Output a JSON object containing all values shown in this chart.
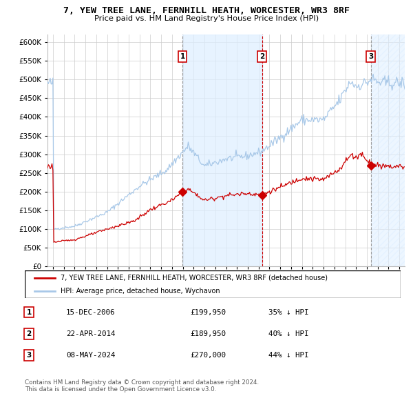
{
  "title": "7, YEW TREE LANE, FERNHILL HEATH, WORCESTER, WR3 8RF",
  "subtitle": "Price paid vs. HM Land Registry's House Price Index (HPI)",
  "hpi_color": "#a8c8e8",
  "price_color": "#cc0000",
  "background_color": "#ffffff",
  "plot_bg_color": "#ffffff",
  "grid_color": "#cccccc",
  "ylim": [
    0,
    620000
  ],
  "yticks": [
    0,
    50000,
    100000,
    150000,
    200000,
    250000,
    300000,
    350000,
    400000,
    450000,
    500000,
    550000,
    600000
  ],
  "xlim_start": 1994.5,
  "xlim_end": 2027.5,
  "transactions": [
    {
      "label": "1",
      "date": 2006.96,
      "price": 199950
    },
    {
      "label": "2",
      "date": 2014.31,
      "price": 189950
    },
    {
      "label": "3",
      "date": 2024.36,
      "price": 270000
    }
  ],
  "legend_line_label": "7, YEW TREE LANE, FERNHILL HEATH, WORCESTER, WR3 8RF (detached house)",
  "legend_hpi_label": "HPI: Average price, detached house, Wychavon",
  "table_rows": [
    {
      "num": "1",
      "date": "15-DEC-2006",
      "price": "£199,950",
      "hpi": "35% ↓ HPI"
    },
    {
      "num": "2",
      "date": "22-APR-2014",
      "price": "£189,950",
      "hpi": "40% ↓ HPI"
    },
    {
      "num": "3",
      "date": "08-MAY-2024",
      "price": "£270,000",
      "hpi": "44% ↓ HPI"
    }
  ],
  "footer": "Contains HM Land Registry data © Crown copyright and database right 2024.\nThis data is licensed under the Open Government Licence v3.0."
}
